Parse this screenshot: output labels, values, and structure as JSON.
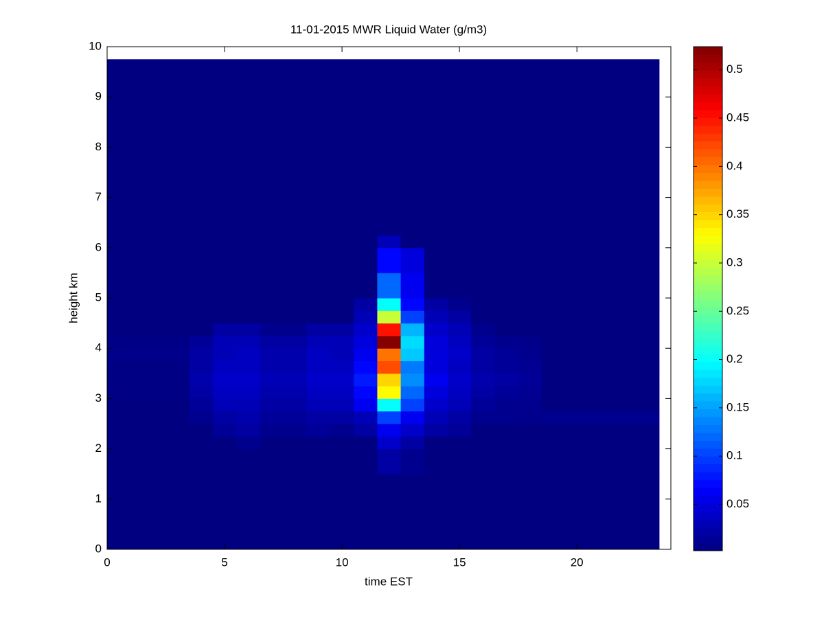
{
  "chart_data": {
    "type": "heatmap",
    "title": "11-01-2015 MWR Liquid Water (g/m3)",
    "x_label": "time EST",
    "y_label": "height km",
    "colormap": "jet",
    "xlim": [
      0,
      24
    ],
    "ylim": [
      0,
      10
    ],
    "xticks": [
      0,
      5,
      10,
      15,
      20
    ],
    "yticks": [
      0,
      1,
      2,
      3,
      4,
      5,
      6,
      7,
      8,
      9,
      10
    ],
    "x_edges": [
      0,
      3.5,
      4.5,
      5.5,
      6.5,
      7.5,
      8.5,
      9.5,
      10.5,
      11.5,
      12.5,
      13.5,
      14.5,
      15.5,
      16.5,
      17.5,
      18.5,
      23.5
    ],
    "y_edges": [
      0,
      1.5,
      2,
      2.25,
      2.5,
      2.75,
      3,
      3.25,
      3.5,
      3.75,
      4,
      4.25,
      4.5,
      4.75,
      5,
      5.5,
      6,
      6.25,
      9.75
    ],
    "values": [
      [
        0.003,
        0.003,
        0.003,
        0.003,
        0.003,
        0.003,
        0.003,
        0.003,
        0.003,
        0.003,
        0.003,
        0.003,
        0.003,
        0.003,
        0.003,
        0.003,
        0.003
      ],
      [
        0.003,
        0.003,
        0.003,
        0.003,
        0.003,
        0.003,
        0.003,
        0.003,
        0.003,
        0.02,
        0.01,
        0.003,
        0.003,
        0.003,
        0.003,
        0.003,
        0.003
      ],
      [
        0.003,
        0.003,
        0.003,
        0.01,
        0.003,
        0.003,
        0.003,
        0.003,
        0.003,
        0.04,
        0.02,
        0.003,
        0.003,
        0.003,
        0.003,
        0.003,
        0.003
      ],
      [
        0.003,
        0.003,
        0.015,
        0.02,
        0.01,
        0.01,
        0.015,
        0.01,
        0.02,
        0.06,
        0.04,
        0.02,
        0.015,
        0.003,
        0.003,
        0.003,
        0.003
      ],
      [
        0.003,
        0.01,
        0.02,
        0.025,
        0.015,
        0.015,
        0.02,
        0.02,
        0.03,
        0.1,
        0.06,
        0.03,
        0.02,
        0.01,
        0.01,
        0.008,
        0.01
      ],
      [
        0.003,
        0.015,
        0.03,
        0.03,
        0.02,
        0.02,
        0.03,
        0.03,
        0.06,
        0.2,
        0.1,
        0.04,
        0.03,
        0.015,
        0.01,
        0.01,
        0.003
      ],
      [
        0.005,
        0.02,
        0.035,
        0.035,
        0.025,
        0.025,
        0.035,
        0.035,
        0.07,
        0.33,
        0.12,
        0.05,
        0.035,
        0.02,
        0.015,
        0.012,
        0.003
      ],
      [
        0.005,
        0.025,
        0.04,
        0.04,
        0.03,
        0.03,
        0.04,
        0.04,
        0.08,
        0.35,
        0.14,
        0.06,
        0.04,
        0.025,
        0.02,
        0.015,
        0.003
      ],
      [
        0.005,
        0.02,
        0.035,
        0.035,
        0.025,
        0.025,
        0.035,
        0.035,
        0.07,
        0.42,
        0.13,
        0.05,
        0.035,
        0.02,
        0.015,
        0.012,
        0.003
      ],
      [
        0.008,
        0.02,
        0.03,
        0.035,
        0.025,
        0.025,
        0.035,
        0.03,
        0.06,
        0.4,
        0.17,
        0.05,
        0.04,
        0.02,
        0.015,
        0.01,
        0.003
      ],
      [
        0.006,
        0.015,
        0.03,
        0.03,
        0.02,
        0.02,
        0.03,
        0.03,
        0.05,
        0.52,
        0.18,
        0.05,
        0.035,
        0.015,
        0.01,
        0.008,
        0.003
      ],
      [
        0.003,
        0.003,
        0.02,
        0.02,
        0.01,
        0.01,
        0.02,
        0.02,
        0.04,
        0.45,
        0.16,
        0.04,
        0.03,
        0.01,
        0.003,
        0.003,
        0.003
      ],
      [
        0.003,
        0.003,
        0.003,
        0.003,
        0.003,
        0.003,
        0.003,
        0.003,
        0.03,
        0.3,
        0.1,
        0.03,
        0.02,
        0.003,
        0.003,
        0.003,
        0.003
      ],
      [
        0.003,
        0.003,
        0.003,
        0.003,
        0.003,
        0.003,
        0.003,
        0.003,
        0.02,
        0.2,
        0.07,
        0.02,
        0.01,
        0.003,
        0.003,
        0.003,
        0.003
      ],
      [
        0.003,
        0.003,
        0.003,
        0.003,
        0.003,
        0.003,
        0.003,
        0.003,
        0.003,
        0.12,
        0.06,
        0.003,
        0.003,
        0.003,
        0.003,
        0.003,
        0.003
      ],
      [
        0.003,
        0.003,
        0.003,
        0.003,
        0.003,
        0.003,
        0.003,
        0.003,
        0.003,
        0.07,
        0.05,
        0.003,
        0.003,
        0.003,
        0.003,
        0.003,
        0.003
      ],
      [
        0.003,
        0.003,
        0.003,
        0.003,
        0.003,
        0.003,
        0.003,
        0.003,
        0.003,
        0.03,
        0.003,
        0.003,
        0.003,
        0.003,
        0.003,
        0.003,
        0.003
      ],
      [
        0.003,
        0.003,
        0.003,
        0.003,
        0.003,
        0.003,
        0.003,
        0.003,
        0.003,
        0.003,
        0.003,
        0.003,
        0.003,
        0.003,
        0.003,
        0.003,
        0.003
      ]
    ],
    "clim": [
      0.002,
      0.524
    ],
    "cticks": [
      0.05,
      0.1,
      0.15,
      0.2,
      0.25,
      0.3,
      0.35,
      0.4,
      0.45,
      0.5
    ]
  }
}
